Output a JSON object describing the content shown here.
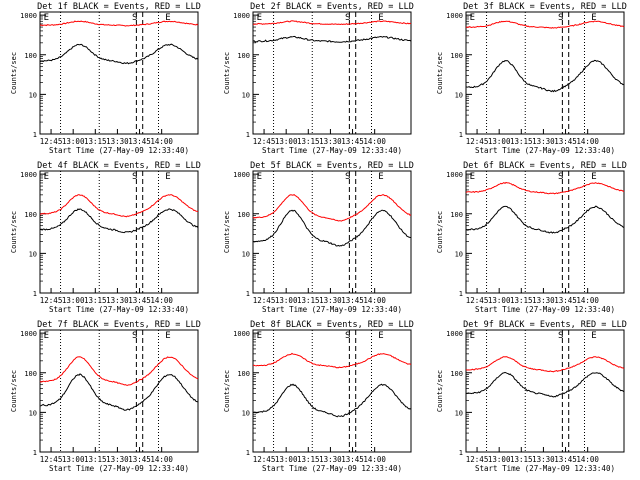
{
  "chart_data": [
    {
      "type": "line",
      "title": "Det 1f BLACK = Events, RED = LLD",
      "events": [
        70,
        180
      ],
      "lld": [
        560,
        700
      ],
      "flag": "f"
    },
    {
      "type": "line",
      "title": "Det 2f BLACK = Events, RED = LLD",
      "events": [
        220,
        280
      ],
      "lld": [
        600,
        700
      ],
      "flag": "f"
    },
    {
      "type": "line",
      "title": "Det 3f BLACK = Events, RED = LLD",
      "events": [
        15,
        70
      ],
      "lld": [
        500,
        700
      ],
      "flag": "f"
    },
    {
      "type": "line",
      "title": "Det 4f BLACK = Events, RED = LLD",
      "events": [
        40,
        130
      ],
      "lld": [
        100,
        300
      ],
      "flag": "f"
    },
    {
      "type": "line",
      "title": "Det 5f BLACK = Events, RED = LLD",
      "events": [
        20,
        120
      ],
      "lld": [
        80,
        300
      ],
      "flag": "f"
    },
    {
      "type": "line",
      "title": "Det 6f BLACK = Events, RED = LLD",
      "events": [
        40,
        150
      ],
      "lld": [
        350,
        600
      ],
      "flag": "f"
    },
    {
      "type": "line",
      "title": "Det 7f BLACK = Events, RED = LLD",
      "events": [
        15,
        90
      ],
      "lld": [
        60,
        250
      ],
      "flag": "f"
    },
    {
      "type": "line",
      "title": "Det 8f BLACK = Events, RED = LLD",
      "events": [
        10,
        50
      ],
      "lld": [
        150,
        300
      ],
      "flag": "f"
    },
    {
      "type": "line",
      "title": "Det 9f BLACK = Events, RED = LLD",
      "events": [
        30,
        100
      ],
      "lld": [
        120,
        250
      ],
      "flag": "f"
    }
  ],
  "shared": {
    "xlabel": "Start Time (27-May-09 12:33:40)",
    "ylabel": "Counts/sec",
    "xticks": [
      "12:45",
      "13:00",
      "13:15",
      "13:30",
      "13:45",
      "14:00"
    ],
    "yticks": [
      "1",
      "10",
      "100",
      "1000"
    ],
    "ylim": [
      1,
      1200
    ],
    "markers": [
      "E",
      "S",
      "E"
    ],
    "colors": {
      "events": "#000000",
      "lld": "#ff0000"
    }
  }
}
